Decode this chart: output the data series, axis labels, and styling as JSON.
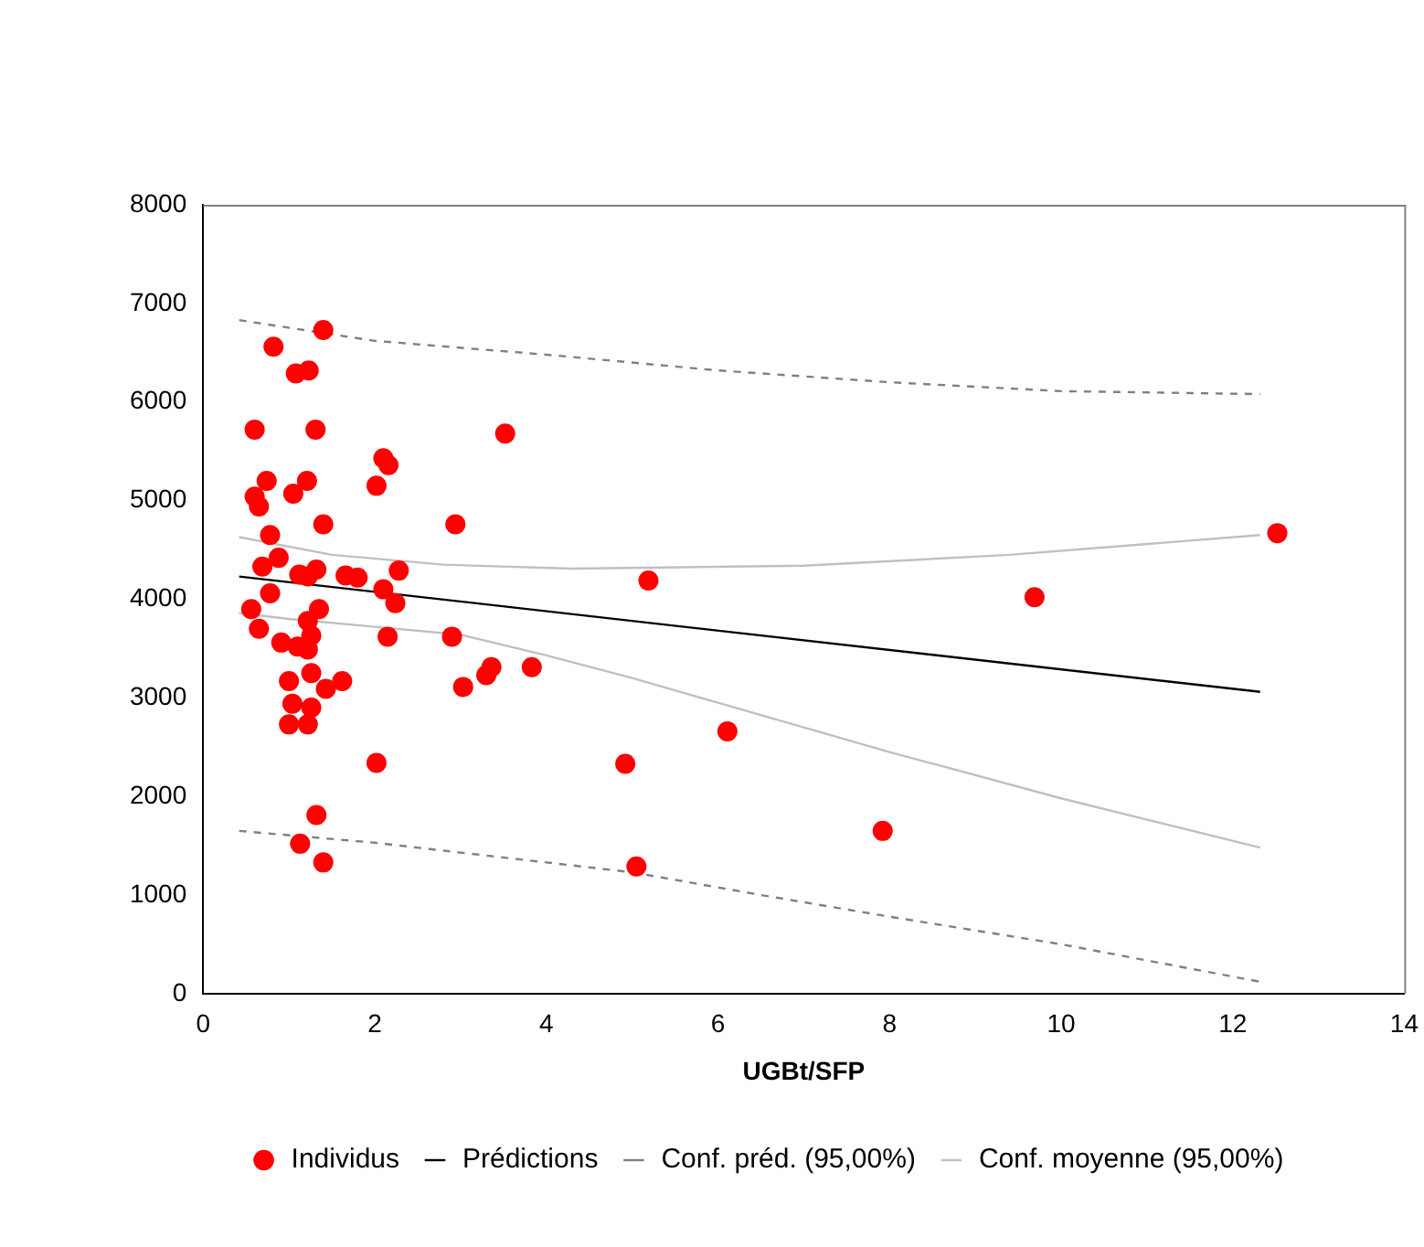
{
  "chart_data": {
    "type": "scatter",
    "xlabel": "UGBt/SFP",
    "xlim": [
      0,
      14
    ],
    "xticks": [
      0,
      2,
      4,
      6,
      8,
      10,
      12,
      14
    ],
    "ylim": [
      0,
      8000
    ],
    "yticks": [
      0,
      1000,
      2000,
      3000,
      4000,
      5000,
      6000,
      7000,
      8000
    ],
    "grid": false,
    "legend": "bottom",
    "series": [
      {
        "name": "Individus",
        "type": "scatter",
        "color": "#ff0000",
        "marker": "circle",
        "x": [
          1.4,
          0.82,
          1.08,
          1.23,
          0.6,
          1.31,
          3.52,
          2.1,
          2.16,
          0.74,
          1.21,
          0.6,
          0.65,
          1.05,
          2.02,
          1.4,
          2.94,
          0.78,
          0.88,
          0.69,
          1.12,
          1.22,
          1.32,
          1.66,
          1.8,
          2.28,
          2.1,
          2.24,
          0.78,
          0.56,
          0.65,
          1.35,
          1.22,
          1.26,
          0.91,
          1.1,
          1.22,
          2.15,
          2.9,
          1.26,
          1.0,
          1.43,
          1.62,
          1.04,
          1.26,
          1.0,
          1.22,
          2.02,
          1.32,
          1.13,
          1.4,
          3.3,
          3.36,
          3.83,
          3.03,
          5.19,
          4.92,
          5.05,
          6.11,
          7.92,
          9.69,
          12.52
        ],
        "values": [
          6730,
          6560,
          6290,
          6320,
          5720,
          5720,
          5680,
          5430,
          5360,
          5200,
          5200,
          5040,
          4940,
          5070,
          5150,
          4760,
          4760,
          4650,
          4420,
          4330,
          4250,
          4230,
          4300,
          4240,
          4220,
          4290,
          4100,
          3960,
          4060,
          3900,
          3700,
          3900,
          3780,
          3630,
          3560,
          3520,
          3490,
          3620,
          3620,
          3250,
          3170,
          3090,
          3170,
          2940,
          2900,
          2730,
          2730,
          2340,
          1810,
          1520,
          1330,
          3230,
          3310,
          3310,
          3110,
          4190,
          2330,
          1290,
          2660,
          1650,
          4020,
          4670
        ]
      },
      {
        "name": "Prédictions",
        "type": "line",
        "color": "#000000",
        "line_style": "solid",
        "x": [
          0.42,
          12.32
        ],
        "values": [
          4230,
          3060
        ]
      },
      {
        "name": "Conf. préd. (95,00%)",
        "type": "line",
        "color": "#808080",
        "line_style": "dashed",
        "x": [
          0.42,
          2,
          4,
          6,
          8,
          10,
          12.32
        ],
        "values": [
          6830,
          6620,
          6480,
          6320,
          6200,
          6110,
          6080
        ]
      },
      {
        "type": "line",
        "color": "#808080",
        "line_style": "dashed",
        "x": [
          0.42,
          2,
          4,
          5,
          6.5,
          8,
          10,
          12.32
        ],
        "values": [
          1650,
          1530,
          1330,
          1230,
          1000,
          780,
          500,
          120
        ]
      },
      {
        "name": "Conf. moyenne (95,00%)",
        "type": "line",
        "color": "#c0c0c0",
        "line_style": "solid",
        "x": [
          0.42,
          1.5,
          2.8,
          4.3,
          7,
          9.4,
          12.32
        ],
        "values": [
          4630,
          4450,
          4350,
          4310,
          4340,
          4450,
          4650
        ]
      },
      {
        "type": "line",
        "color": "#c0c0c0",
        "line_style": "solid",
        "x": [
          0.42,
          1,
          2,
          3,
          4,
          5,
          6,
          8,
          10,
          12.32
        ],
        "values": [
          3860,
          3800,
          3720,
          3640,
          3430,
          3200,
          2950,
          2450,
          1980,
          1480
        ]
      }
    ]
  }
}
